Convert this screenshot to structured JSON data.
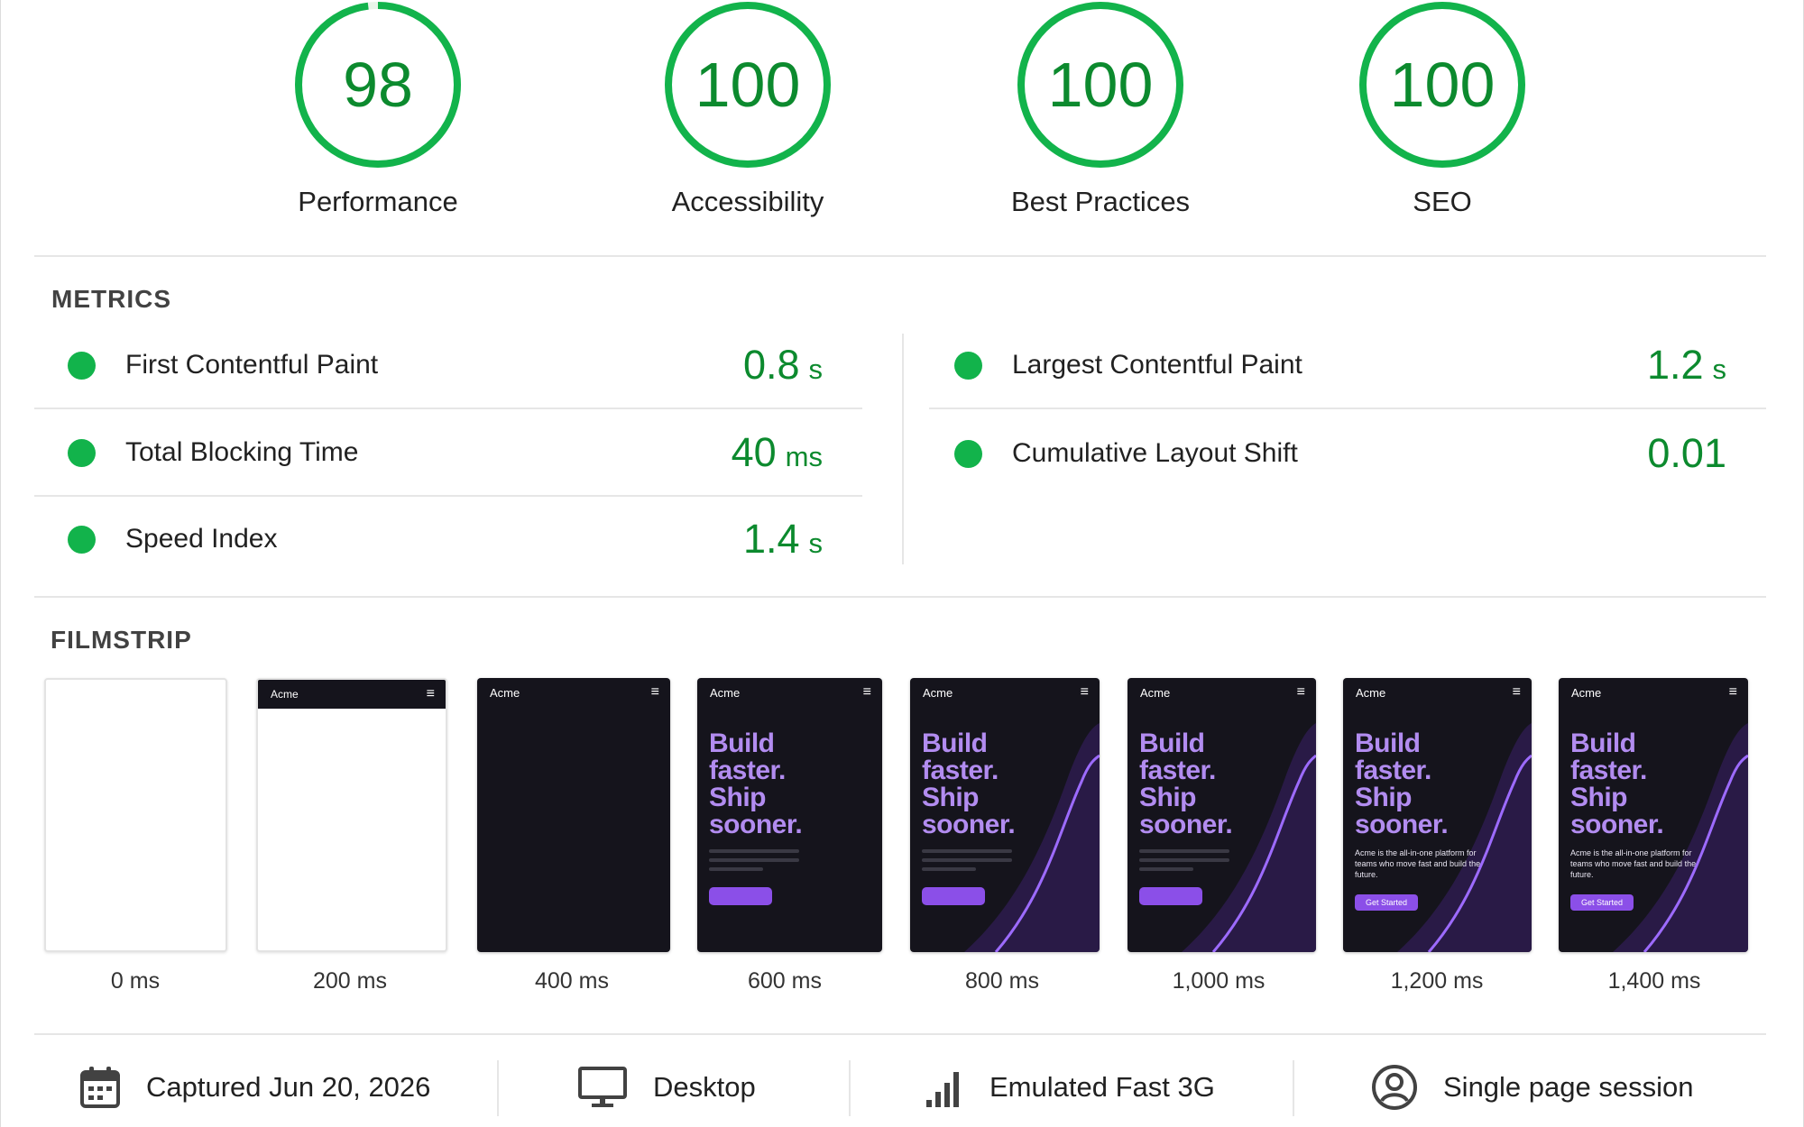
{
  "gauges": [
    {
      "score": "98",
      "value": 98,
      "label": "Performance"
    },
    {
      "score": "100",
      "value": 100,
      "label": "Accessibility"
    },
    {
      "score": "100",
      "value": 100,
      "label": "Best Practices"
    },
    {
      "score": "100",
      "value": 100,
      "label": "SEO"
    }
  ],
  "colors": {
    "pass": "#0c8a2e",
    "pass_dot": "#12b34b",
    "ring_track": "#e8f5e9",
    "accent_purple": "#8b4fe8"
  },
  "metrics": {
    "title": "METRICS",
    "items": [
      {
        "name": "First Contentful Paint",
        "value": "0.8",
        "unit": "s"
      },
      {
        "name": "Largest Contentful Paint",
        "value": "1.2",
        "unit": "s"
      },
      {
        "name": "Total Blocking Time",
        "value": "40",
        "unit": "ms"
      },
      {
        "name": "Cumulative Layout Shift",
        "value": "0.01",
        "unit": ""
      },
      {
        "name": "Speed Index",
        "value": "1.4",
        "unit": "s"
      }
    ]
  },
  "filmstrip": {
    "title": "FILMSTRIP",
    "frames": [
      {
        "time": "0 ms"
      },
      {
        "time": "200 ms"
      },
      {
        "time": "400 ms"
      },
      {
        "time": "600 ms"
      },
      {
        "time": "800 ms"
      },
      {
        "time": "1,000 ms"
      },
      {
        "time": "1,200 ms"
      },
      {
        "time": "1,400 ms"
      }
    ],
    "preview": {
      "brand": "Acme",
      "menu_icon": "≡",
      "hero_lines": [
        "Build",
        "faster.",
        "Ship",
        "sooner."
      ],
      "paragraph": "Acme is the all-in-one platform for teams who move fast and build the future.",
      "button": "Get Started"
    }
  },
  "footer": {
    "items": [
      {
        "icon": "calendar-icon",
        "text": "Captured Jun 20, 2026"
      },
      {
        "icon": "desktop-icon",
        "text": "Desktop"
      },
      {
        "icon": "signal-icon",
        "text": "Emulated Fast 3G"
      },
      {
        "icon": "user-circle-icon",
        "text": "Single page session"
      }
    ]
  }
}
